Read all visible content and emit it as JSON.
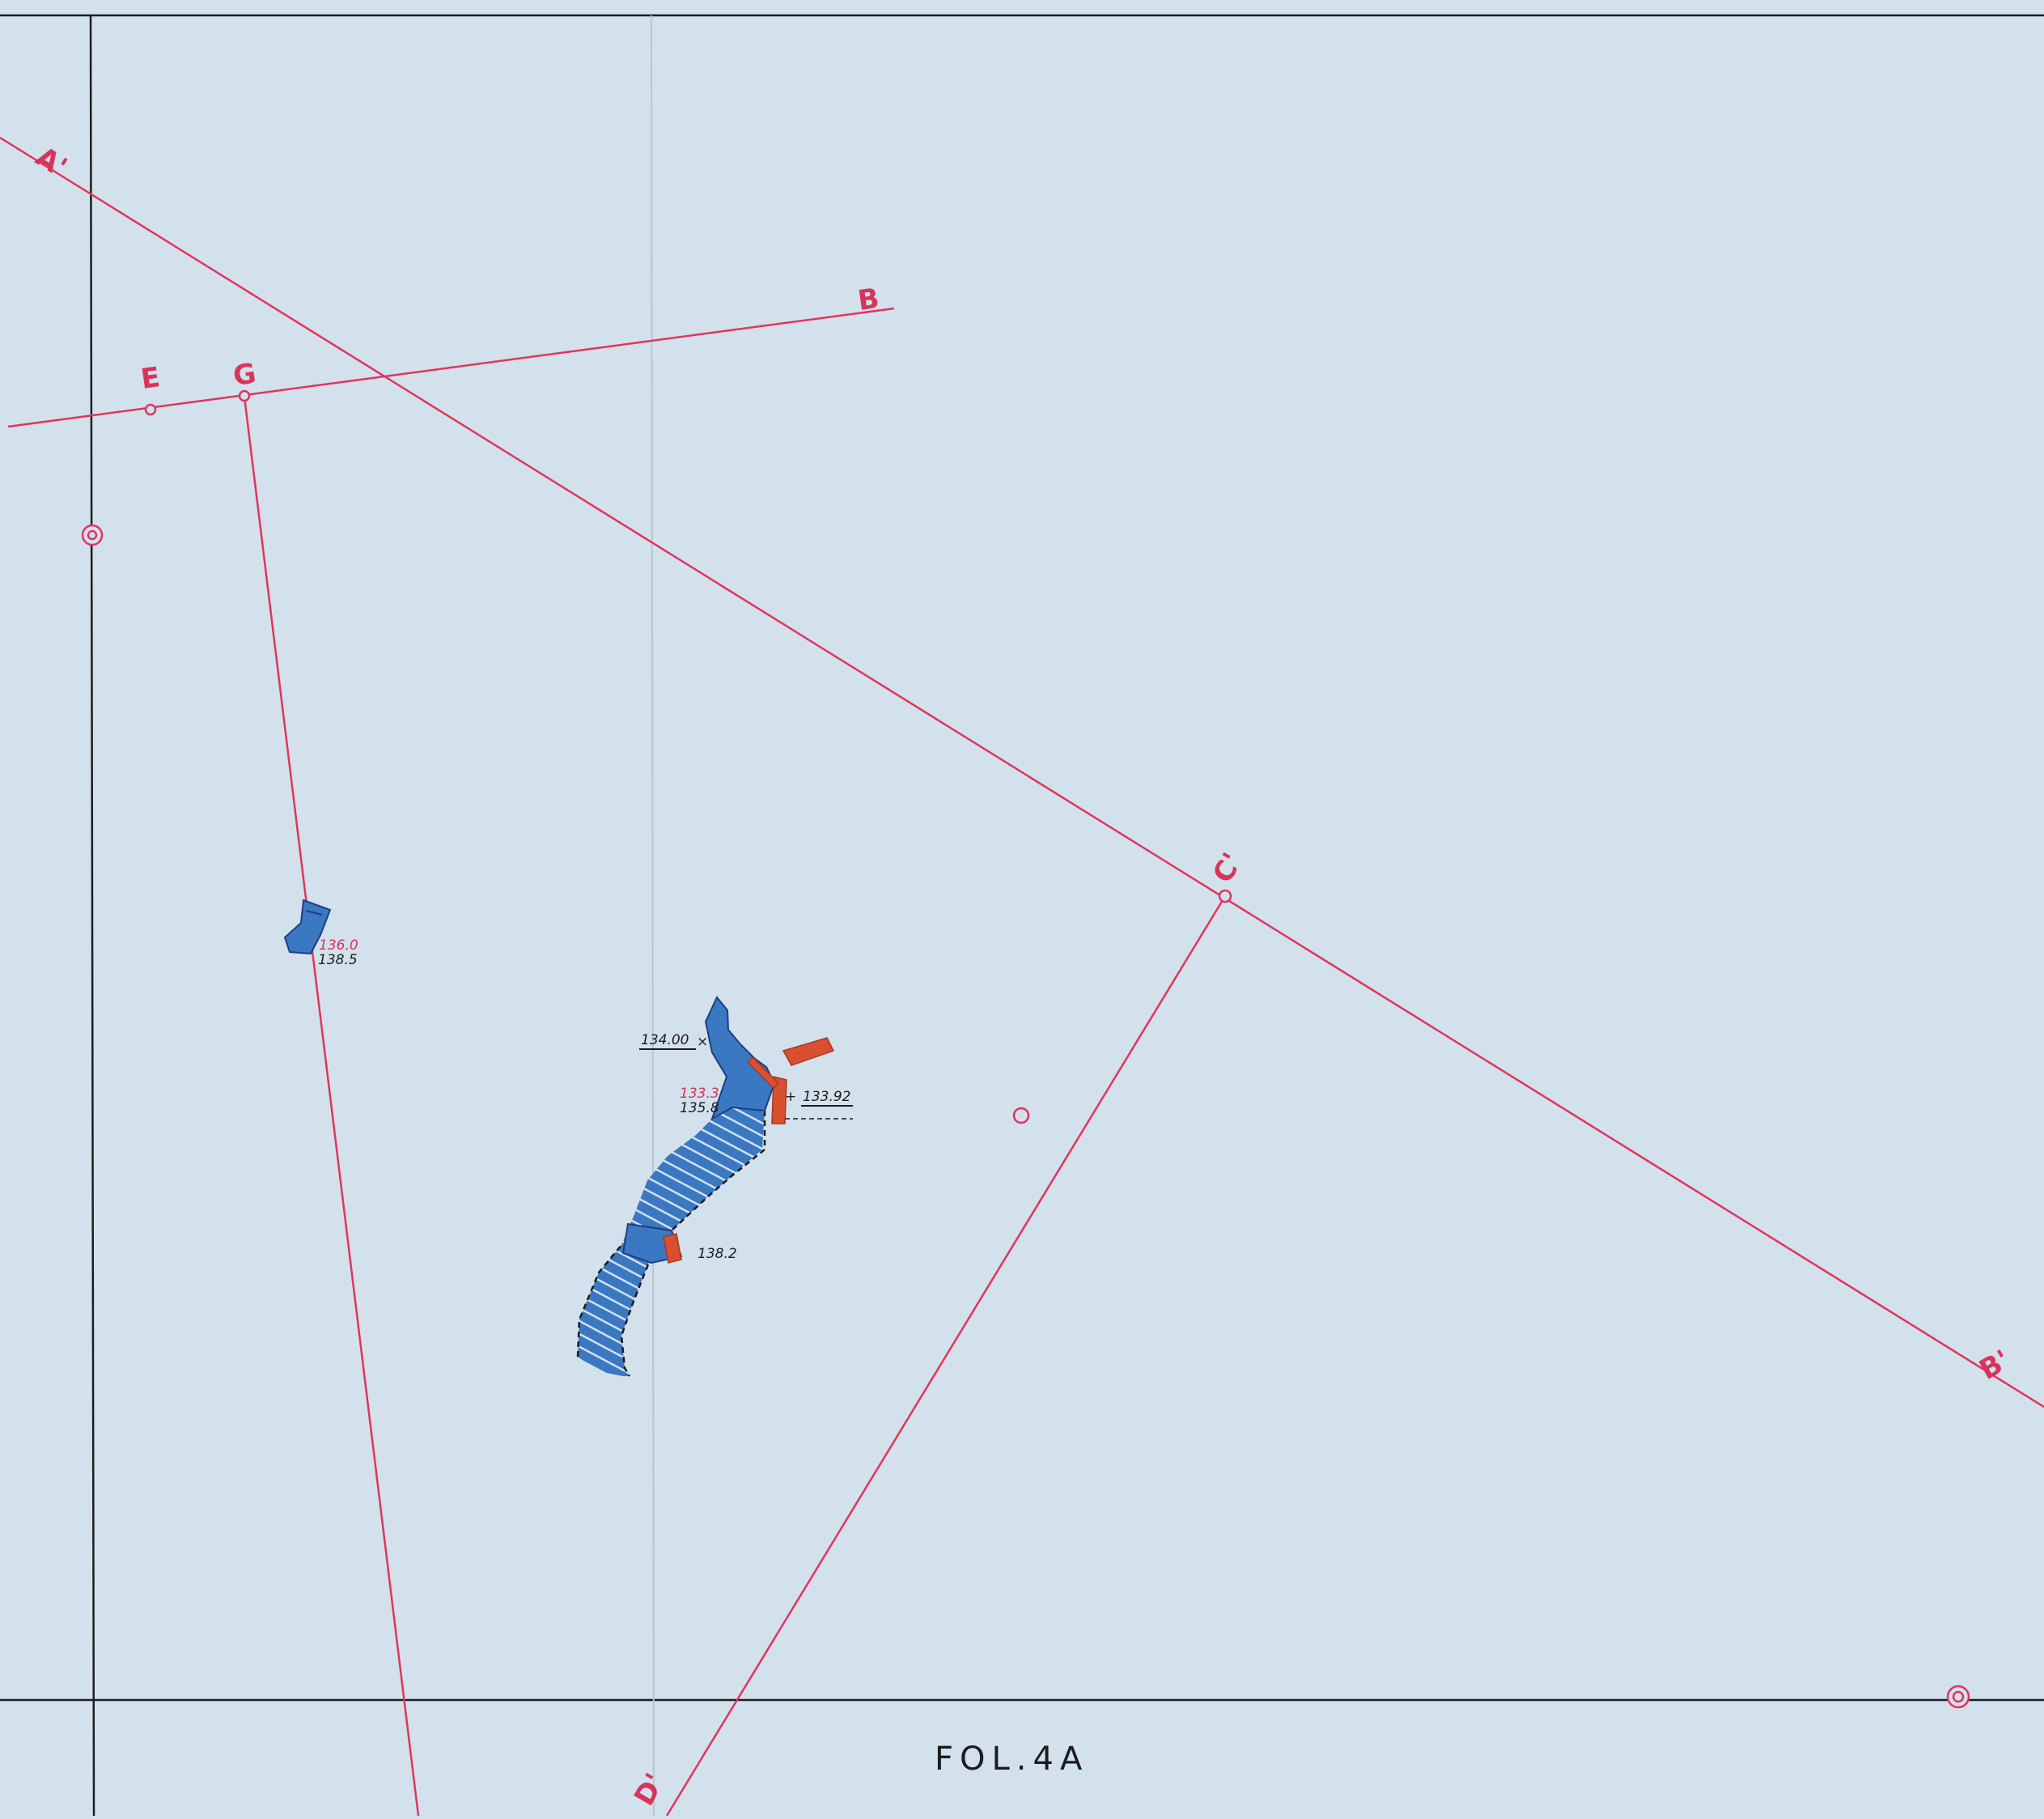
{
  "sheet": {
    "folio": "FOL.4A",
    "colors": {
      "paper": "#d3e1ec",
      "grid_line": "#1d1d1d",
      "survey_line": "#e0355e",
      "feature_fill": "#3a78c2",
      "feature_hatch": "#1d3e86",
      "red_mark": "#d85030",
      "red_text": "#d8345a",
      "ink": "#1c1c1c"
    }
  },
  "station_labels": {
    "A_prime": "A'",
    "B": "B",
    "E": "E",
    "G": "G",
    "C_prime": "C'",
    "B_prime": "B'",
    "D_prime": "D'"
  },
  "elevations": {
    "e1_red": "136.0",
    "e1_dark": "138.5",
    "e2": "134.00",
    "e3_red": "133.3",
    "e3_dark": "135.8",
    "e4": "133.92",
    "e5": "138.2"
  }
}
